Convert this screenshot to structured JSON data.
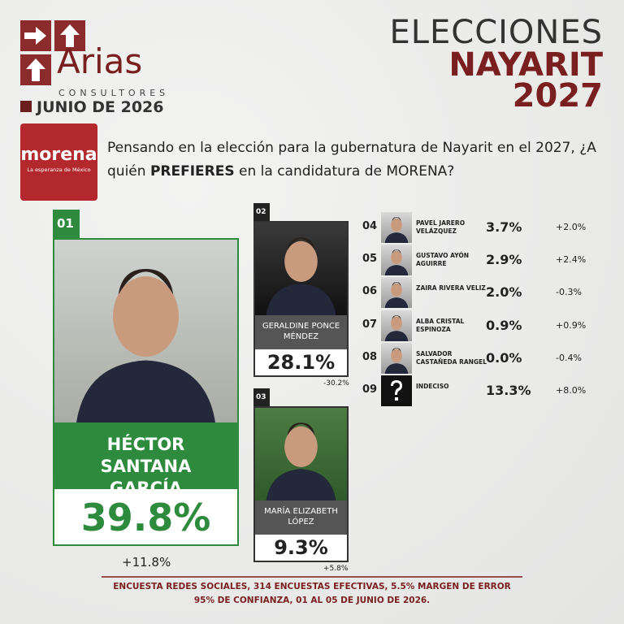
{
  "logo": {
    "brand": "Arias",
    "sub": "CONSULTORES",
    "date": "JUNIO DE 2026"
  },
  "header": {
    "line1": "ELECCIONES",
    "line2": "NAYARIT",
    "line3": "2027"
  },
  "party": {
    "name": "morena",
    "tagline": "La esperanza de México"
  },
  "question": [
    "Pensando en la elección para la gubernatura de Nayarit en el 2027,  ¿A quién ",
    "PREFIERES",
    " en la candidatura de MORENA?"
  ],
  "candidates": [
    {
      "rank": "01",
      "name": "HÉCTOR SANTANA GARCÍA",
      "pct": "39.8%",
      "change": "+11.8%"
    },
    {
      "rank": "02",
      "name": "GERALDINE PONCE MÉNDEZ",
      "pct": "28.1%",
      "change": "-30.2%"
    },
    {
      "rank": "03",
      "name": "MARÍA ELIZABETH LÓPEZ",
      "pct": "9.3%",
      "change": "+5.8%"
    },
    {
      "rank": "04",
      "name": "PAVEL JARERO VELÁZQUEZ",
      "pct": "3.7%",
      "change": "+2.0%"
    },
    {
      "rank": "05",
      "name": "GUSTAVO AYÓN AGUIRRE",
      "pct": "2.9%",
      "change": "+2.4%"
    },
    {
      "rank": "06",
      "name": "ZAIRA RIVERA VELIZ",
      "pct": "2.0%",
      "change": "-0.3%"
    },
    {
      "rank": "07",
      "name": "ALBA CRISTAL ESPINOZA",
      "pct": "0.9%",
      "change": "+0.9%"
    },
    {
      "rank": "08",
      "name": "SALVADOR CASTAÑEDA RANGEL",
      "pct": "0.0%",
      "change": "-0.4%"
    },
    {
      "rank": "09",
      "name": "INDECISO",
      "pct": "13.3%",
      "change": "+8.0%"
    }
  ],
  "footer": [
    "ENCUESTA REDES SOCIALES, 314 ENCUESTAS EFECTIVAS, 5.5%  MARGEN DE ERROR",
    "95% DE CONFIANZA, 01 AL 05 DE JUNIO DE 2026."
  ]
}
